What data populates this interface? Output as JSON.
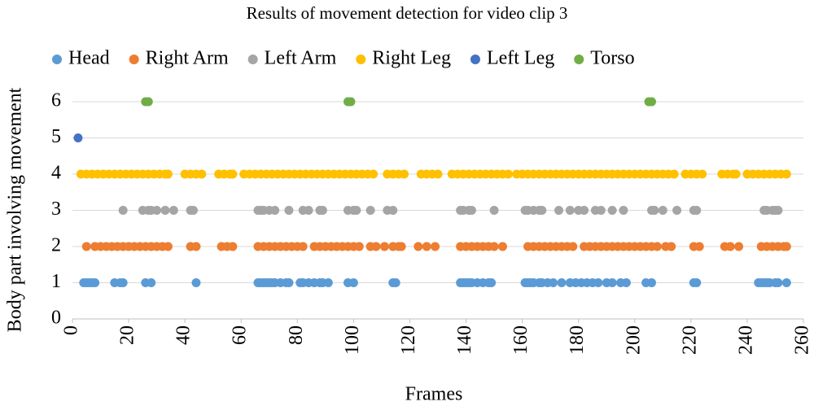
{
  "chart_data": {
    "type": "scatter",
    "title": "Results of movement detection for video clip 3",
    "x_label": "Frames",
    "y_label": "Body part involving movement",
    "xlim": [
      0,
      260
    ],
    "xticks": [
      0,
      20,
      40,
      60,
      80,
      100,
      120,
      140,
      160,
      180,
      200,
      220,
      240,
      260
    ],
    "ylim": [
      0,
      6
    ],
    "yticks": [
      0,
      1,
      2,
      3,
      4,
      5,
      6
    ],
    "grid": true,
    "legend": "top",
    "series": [
      {
        "name": "Head",
        "color": "#5b9bd5",
        "x": [
          4,
          5,
          6,
          7,
          8,
          15,
          17,
          18,
          26,
          28,
          44,
          66,
          67,
          68,
          69,
          70,
          71,
          72,
          74,
          76,
          77,
          81,
          82,
          84,
          86,
          88,
          89,
          91,
          98,
          100,
          114,
          115,
          138,
          139,
          140,
          141,
          142,
          144,
          146,
          148,
          149,
          161,
          162,
          163,
          164,
          166,
          167,
          169,
          171,
          174,
          177,
          179,
          181,
          183,
          185,
          187,
          190,
          192,
          195,
          197,
          204,
          206,
          221,
          222,
          244,
          245,
          246,
          247,
          248,
          250,
          251,
          254
        ],
        "values": [
          1,
          1,
          1,
          1,
          1,
          1,
          1,
          1,
          1,
          1,
          1,
          1,
          1,
          1,
          1,
          1,
          1,
          1,
          1,
          1,
          1,
          1,
          1,
          1,
          1,
          1,
          1,
          1,
          1,
          1,
          1,
          1,
          1,
          1,
          1,
          1,
          1,
          1,
          1,
          1,
          1,
          1,
          1,
          1,
          1,
          1,
          1,
          1,
          1,
          1,
          1,
          1,
          1,
          1,
          1,
          1,
          1,
          1,
          1,
          1,
          1,
          1,
          1,
          1,
          1,
          1,
          1,
          1,
          1,
          1,
          1,
          1
        ]
      },
      {
        "name": "Right Arm",
        "color": "#ed7d31",
        "x": [
          5,
          8,
          10,
          12,
          14,
          16,
          18,
          20,
          22,
          24,
          26,
          28,
          30,
          32,
          34,
          42,
          44,
          53,
          55,
          57,
          66,
          68,
          70,
          72,
          74,
          76,
          78,
          80,
          82,
          86,
          88,
          90,
          92,
          94,
          96,
          98,
          100,
          102,
          106,
          108,
          111,
          114,
          116,
          117,
          123,
          126,
          129,
          138,
          140,
          142,
          144,
          146,
          148,
          150,
          153,
          162,
          164,
          166,
          168,
          170,
          172,
          174,
          176,
          178,
          182,
          184,
          186,
          188,
          190,
          192,
          194,
          196,
          198,
          200,
          202,
          204,
          206,
          208,
          211,
          213,
          221,
          223,
          232,
          234,
          237,
          245,
          247,
          249,
          251,
          253,
          254
        ],
        "values": [
          2,
          2,
          2,
          2,
          2,
          2,
          2,
          2,
          2,
          2,
          2,
          2,
          2,
          2,
          2,
          2,
          2,
          2,
          2,
          2,
          2,
          2,
          2,
          2,
          2,
          2,
          2,
          2,
          2,
          2,
          2,
          2,
          2,
          2,
          2,
          2,
          2,
          2,
          2,
          2,
          2,
          2,
          2,
          2,
          2,
          2,
          2,
          2,
          2,
          2,
          2,
          2,
          2,
          2,
          2,
          2,
          2,
          2,
          2,
          2,
          2,
          2,
          2,
          2,
          2,
          2,
          2,
          2,
          2,
          2,
          2,
          2,
          2,
          2,
          2,
          2,
          2,
          2,
          2,
          2,
          2,
          2,
          2,
          2,
          2,
          2,
          2,
          2,
          2,
          2,
          2
        ]
      },
      {
        "name": "Left Arm",
        "color": "#a5a5a5",
        "x": [
          18,
          25,
          27,
          28,
          30,
          33,
          36,
          42,
          43,
          66,
          67,
          68,
          70,
          72,
          77,
          82,
          84,
          88,
          89,
          98,
          100,
          101,
          106,
          112,
          114,
          138,
          139,
          141,
          142,
          150,
          161,
          162,
          164,
          166,
          167,
          173,
          177,
          180,
          182,
          186,
          188,
          192,
          196,
          206,
          207,
          210,
          215,
          221,
          222,
          246,
          247,
          249,
          250,
          251
        ],
        "values": [
          3,
          3,
          3,
          3,
          3,
          3,
          3,
          3,
          3,
          3,
          3,
          3,
          3,
          3,
          3,
          3,
          3,
          3,
          3,
          3,
          3,
          3,
          3,
          3,
          3,
          3,
          3,
          3,
          3,
          3,
          3,
          3,
          3,
          3,
          3,
          3,
          3,
          3,
          3,
          3,
          3,
          3,
          3,
          3,
          3,
          3,
          3,
          3,
          3,
          3,
          3,
          3,
          3,
          3
        ]
      },
      {
        "name": "Right Leg",
        "color": "#ffc000",
        "x": [
          3,
          5,
          7,
          9,
          11,
          13,
          15,
          17,
          19,
          21,
          23,
          25,
          27,
          29,
          31,
          33,
          34,
          40,
          42,
          44,
          46,
          52,
          54,
          56,
          57,
          61,
          63,
          65,
          67,
          69,
          71,
          73,
          75,
          77,
          79,
          81,
          83,
          85,
          87,
          89,
          91,
          93,
          95,
          97,
          99,
          101,
          103,
          105,
          107,
          112,
          114,
          116,
          118,
          124,
          126,
          128,
          130,
          135,
          137,
          139,
          141,
          143,
          145,
          147,
          149,
          151,
          153,
          155,
          158,
          160,
          162,
          164,
          166,
          168,
          170,
          172,
          174,
          176,
          178,
          180,
          182,
          184,
          186,
          188,
          190,
          192,
          194,
          196,
          198,
          200,
          202,
          204,
          206,
          208,
          210,
          212,
          214,
          218,
          220,
          222,
          224,
          231,
          233,
          235,
          236,
          240,
          242,
          244,
          246,
          248,
          250,
          252,
          254
        ],
        "values": [
          4,
          4,
          4,
          4,
          4,
          4,
          4,
          4,
          4,
          4,
          4,
          4,
          4,
          4,
          4,
          4,
          4,
          4,
          4,
          4,
          4,
          4,
          4,
          4,
          4,
          4,
          4,
          4,
          4,
          4,
          4,
          4,
          4,
          4,
          4,
          4,
          4,
          4,
          4,
          4,
          4,
          4,
          4,
          4,
          4,
          4,
          4,
          4,
          4,
          4,
          4,
          4,
          4,
          4,
          4,
          4,
          4,
          4,
          4,
          4,
          4,
          4,
          4,
          4,
          4,
          4,
          4,
          4,
          4,
          4,
          4,
          4,
          4,
          4,
          4,
          4,
          4,
          4,
          4,
          4,
          4,
          4,
          4,
          4,
          4,
          4,
          4,
          4,
          4,
          4,
          4,
          4,
          4,
          4,
          4,
          4,
          4,
          4,
          4,
          4,
          4,
          4,
          4,
          4,
          4,
          4,
          4,
          4,
          4,
          4,
          4,
          4,
          4
        ]
      },
      {
        "name": "Left Leg",
        "color": "#4472c4",
        "x": [
          2
        ],
        "values": [
          5
        ]
      },
      {
        "name": "Torso",
        "color": "#70ad47",
        "x": [
          26,
          27,
          98,
          99,
          205,
          206
        ],
        "values": [
          6,
          6,
          6,
          6,
          6,
          6
        ]
      }
    ]
  }
}
